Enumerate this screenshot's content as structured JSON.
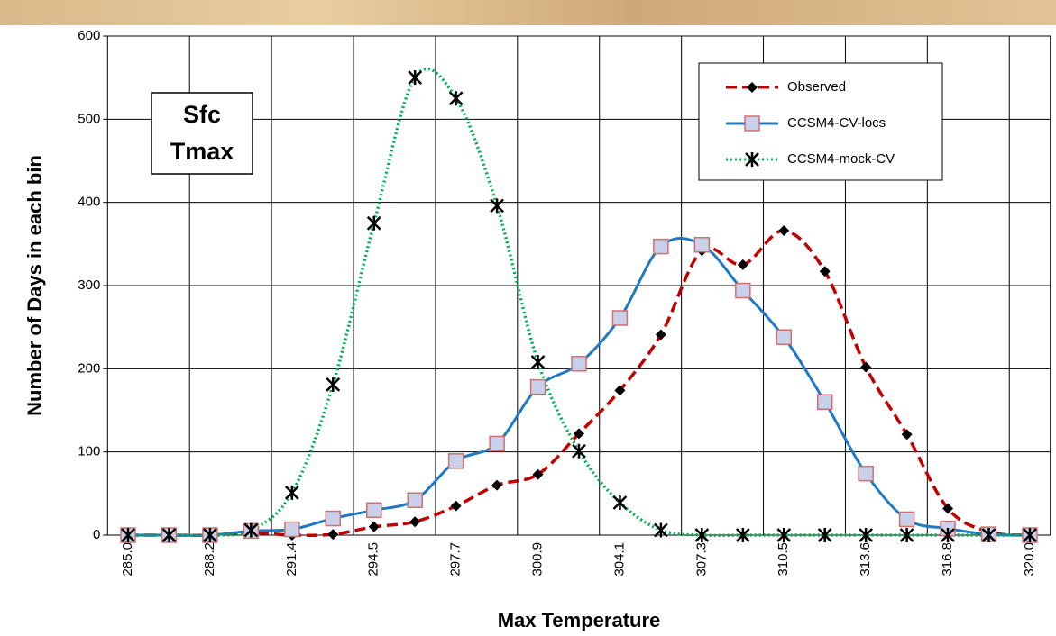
{
  "chart_data": {
    "type": "line",
    "y_label": "Number of Days in each bin",
    "x_label": "Max Temperature",
    "annotation": [
      "Sfc",
      "Tmax"
    ],
    "categories": [
      "285.0",
      null,
      "288.2",
      null,
      "291.4",
      null,
      "294.5",
      null,
      "297.7",
      null,
      "300.9",
      null,
      "304.1",
      null,
      "307.3",
      null,
      "310.5",
      null,
      "313.6",
      null,
      "316.8",
      null,
      "320.0"
    ],
    "series": [
      {
        "name": "Observed",
        "color": "#c00000",
        "line_style": "dashed",
        "marker": "diamond",
        "values": [
          0,
          0,
          0,
          3,
          0,
          1,
          10,
          16,
          35,
          60,
          73,
          122,
          174,
          241,
          342,
          325,
          366,
          317,
          202,
          121,
          32,
          4,
          0
        ]
      },
      {
        "name": "CCSM4-CV-locs",
        "color": "#1f7ac4",
        "line_style": "solid",
        "marker": "square",
        "values": [
          0,
          0,
          0,
          5,
          7,
          20,
          30,
          42,
          89,
          110,
          178,
          206,
          261,
          347,
          349,
          294,
          238,
          160,
          74,
          19,
          8,
          1,
          0
        ]
      },
      {
        "name": "CCSM4-mock-CV",
        "color": "#00b050",
        "line_style": "dotted",
        "marker": "asterisk",
        "values": [
          0,
          0,
          0,
          6,
          51,
          181,
          375,
          550,
          525,
          396,
          208,
          101,
          39,
          6,
          0,
          0,
          0,
          0,
          0,
          0,
          0,
          0,
          0
        ]
      }
    ],
    "ylim": [
      0,
      600
    ],
    "yticks": [
      0,
      100,
      200,
      300,
      400,
      500,
      600
    ],
    "grid": true
  }
}
